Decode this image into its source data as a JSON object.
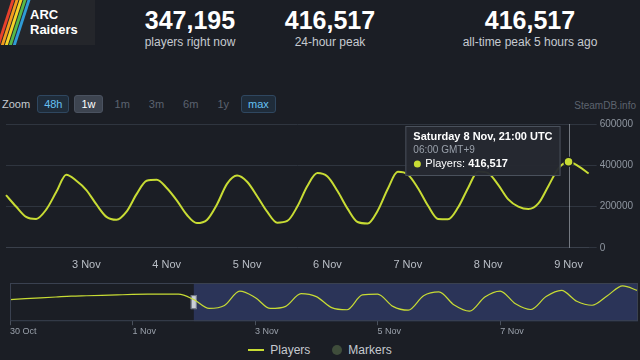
{
  "page": {
    "header": {
      "logo_text": "ARC Raiders",
      "stats": [
        {
          "value": "347,195",
          "label": "players right now"
        },
        {
          "value": "416,517",
          "label": "24-hour peak"
        },
        {
          "value": "416,517",
          "label": "all-time peak 5 hours ago"
        }
      ]
    },
    "zoom": {
      "label": "Zoom",
      "buttons": [
        "48h",
        "1w",
        "1m",
        "3m",
        "6m",
        "1y",
        "max"
      ],
      "active": "1w",
      "enabled": [
        "48h",
        "1w",
        "max"
      ]
    },
    "watermark": "SteamDB.info",
    "tooltip": {
      "title": "Saturday 8 Nov, 21:00 UTC",
      "subtitle": "06:00 GMT+9",
      "label": "Players:",
      "value": "416,517"
    }
  },
  "chart_data": [
    {
      "type": "line",
      "categories": [
        null,
        null,
        null,
        null,
        null,
        null,
        null,
        null,
        "3 Nov",
        null,
        null,
        null,
        null,
        null,
        null,
        null,
        "4 Nov",
        null,
        null,
        null,
        null,
        null,
        null,
        null,
        "5 Nov",
        null,
        null,
        null,
        null,
        null,
        null,
        null,
        "6 Nov",
        null,
        null,
        null,
        null,
        null,
        null,
        null,
        "7 Nov",
        null,
        null,
        null,
        null,
        null,
        null,
        null,
        "8 Nov",
        null,
        null,
        null,
        null,
        null,
        null,
        null,
        "9 Nov",
        null,
        null
      ],
      "series": [
        {
          "name": "Players",
          "color": "#c8dc34",
          "marker": "none",
          "line_style": "solid",
          "values": [
            255000,
            200000,
            150000,
            140000,
            185000,
            270000,
            354000,
            325000,
            280000,
            210000,
            150000,
            136000,
            175000,
            260000,
            325000,
            330000,
            290000,
            230000,
            160000,
            120000,
            135000,
            210000,
            310000,
            350000,
            320000,
            250000,
            175000,
            122000,
            130000,
            200000,
            300000,
            362000,
            345000,
            275000,
            190000,
            125000,
            118000,
            180000,
            285000,
            368000,
            355000,
            290000,
            205000,
            140000,
            138000,
            195000,
            290000,
            370000,
            362000,
            305000,
            235000,
            200000,
            188000,
            215000,
            300000,
            385000,
            416517,
            395000,
            360000
          ]
        },
        {
          "name": "Markers",
          "color": "#3f4d3b",
          "marker": "circle",
          "line_style": "solid",
          "values": [
            null,
            null,
            null,
            null,
            null,
            null,
            null,
            null,
            null,
            null,
            null,
            null,
            null,
            null,
            null,
            null,
            null,
            null,
            null,
            null,
            null,
            null,
            null,
            null,
            null,
            null,
            null,
            null,
            null,
            null,
            null,
            null,
            null,
            null,
            null,
            null,
            null,
            null,
            null,
            null,
            null,
            null,
            null,
            null,
            null,
            null,
            null,
            null,
            null,
            null,
            null,
            null,
            null,
            null,
            null,
            null,
            null,
            null,
            null
          ]
        }
      ],
      "ylim": [
        0,
        600000
      ],
      "yticks": [
        0,
        200000,
        400000,
        600000
      ],
      "grid": true,
      "legend": "bottom"
    },
    {
      "type": "line",
      "categories": [
        "30 Oct",
        null,
        null,
        null,
        null,
        null,
        null,
        null,
        "1 Nov",
        null,
        null,
        null,
        null,
        null,
        null,
        null,
        "3 Nov",
        null,
        null,
        null,
        null,
        null,
        null,
        null,
        "5 Nov",
        null,
        null,
        null,
        null,
        null,
        null,
        null,
        "7 Nov",
        null,
        null,
        null,
        null,
        null,
        null,
        null,
        null,
        null
      ],
      "values": [
        255000,
        265000,
        275000,
        285000,
        295000,
        300000,
        305000,
        310000,
        315000,
        318000,
        320000,
        320000,
        255000,
        150000,
        185000,
        354000,
        280000,
        150000,
        175000,
        325000,
        290000,
        160000,
        135000,
        310000,
        320000,
        175000,
        130000,
        300000,
        345000,
        190000,
        118000,
        285000,
        355000,
        205000,
        138000,
        290000,
        362000,
        235000,
        188000,
        300000,
        416517,
        360000
      ],
      "color": "#c8dc34",
      "ylim": [
        0,
        450000
      ],
      "yticks": [],
      "grid": false,
      "tick_labels": "x"
    }
  ]
}
